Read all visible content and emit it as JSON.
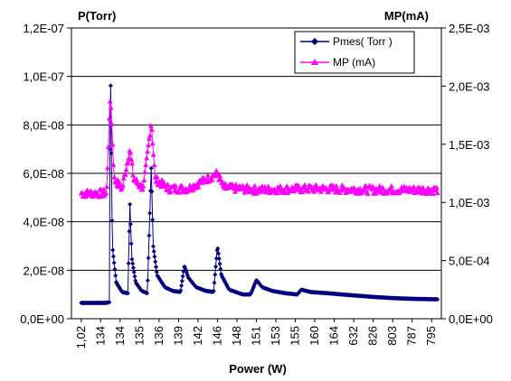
{
  "chart_data": {
    "type": "line",
    "xlabel": "Power (W)",
    "y_left_label": "P(Torr)",
    "y_right_label": "MP(mA)",
    "x_categories": [
      "1,02",
      "134",
      "134",
      "135",
      "136",
      "139",
      "142",
      "146",
      "148",
      "151",
      "153",
      "155",
      "160",
      "164",
      "632",
      "826",
      "803",
      "787",
      "795"
    ],
    "y_left_ticks": [
      "0,0E+00",
      "2,0E-08",
      "4,0E-08",
      "6,0E-08",
      "8,0E-08",
      "1,0E-07",
      "1,2E-07"
    ],
    "y_right_ticks": [
      "0,0E+00",
      "5,0E-04",
      "1,0E-03",
      "1,5E-03",
      "2,0E-03",
      "2,5E-03"
    ],
    "ylim_left": [
      0,
      1.2e-07
    ],
    "ylim_right": [
      0,
      0.0025
    ],
    "grid": "horizontal",
    "legend_position": "top-right",
    "series": [
      {
        "name": "Pmes( Torr )",
        "axis": "left",
        "color": "#000080",
        "marker": "diamond",
        "points": [
          [
            0,
            6.5e-09
          ],
          [
            1.2,
            6.5e-09
          ],
          [
            1.45,
            6.8e-09
          ],
          [
            1.5,
            1.09e-07
          ],
          [
            1.6,
            3e-08
          ],
          [
            1.8,
            1.5e-08
          ],
          [
            2.1,
            1.1e-08
          ],
          [
            2.4,
            1.05e-08
          ],
          [
            2.5,
            4.8e-08
          ],
          [
            2.6,
            2.5e-08
          ],
          [
            2.8,
            1.5e-08
          ],
          [
            3.1,
            1.15e-08
          ],
          [
            3.4,
            1.05e-08
          ],
          [
            3.6,
            6.3e-08
          ],
          [
            3.7,
            3e-08
          ],
          [
            3.9,
            1.8e-08
          ],
          [
            4.3,
            1.3e-08
          ],
          [
            4.7,
            1.15e-08
          ],
          [
            5.1,
            1.1e-08
          ],
          [
            5.3,
            2.2e-08
          ],
          [
            5.5,
            1.7e-08
          ],
          [
            5.9,
            1.3e-08
          ],
          [
            6.4,
            1.15e-08
          ],
          [
            6.8,
            1.1e-08
          ],
          [
            7.0,
            3e-08
          ],
          [
            7.2,
            1.8e-08
          ],
          [
            7.6,
            1.2e-08
          ],
          [
            8.3,
            1e-08
          ],
          [
            8.7,
            1e-08
          ],
          [
            9.0,
            1.6e-08
          ],
          [
            9.3,
            1.3e-08
          ],
          [
            9.8,
            1.15e-08
          ],
          [
            10.5,
            1.05e-08
          ],
          [
            11.1,
            1e-08
          ],
          [
            11.3,
            1.2e-08
          ],
          [
            11.8,
            1.1e-08
          ],
          [
            12.7,
            1.05e-08
          ],
          [
            13.4,
            1e-08
          ],
          [
            14.2,
            9.5e-09
          ],
          [
            15.0,
            9e-09
          ],
          [
            16.0,
            8.5e-09
          ],
          [
            17.0,
            8.2e-09
          ],
          [
            18.3,
            8e-09
          ]
        ]
      },
      {
        "name": "MP (mA)",
        "axis": "right",
        "color": "#ff00ff",
        "marker": "triangle",
        "points": [
          [
            0,
            0.00108
          ],
          [
            1.3,
            0.00108
          ],
          [
            1.5,
            0.00194
          ],
          [
            1.7,
            0.0012
          ],
          [
            2.1,
            0.00112
          ],
          [
            2.5,
            0.00146
          ],
          [
            2.7,
            0.0012
          ],
          [
            3.2,
            0.00112
          ],
          [
            3.6,
            0.0017
          ],
          [
            3.8,
            0.0012
          ],
          [
            4.5,
            0.00112
          ],
          [
            5.5,
            0.00112
          ],
          [
            7.0,
            0.00125
          ],
          [
            7.3,
            0.00113
          ],
          [
            9,
            0.00111
          ],
          [
            12,
            0.00112
          ],
          [
            15,
            0.00111
          ],
          [
            18.3,
            0.00111
          ]
        ]
      }
    ]
  }
}
